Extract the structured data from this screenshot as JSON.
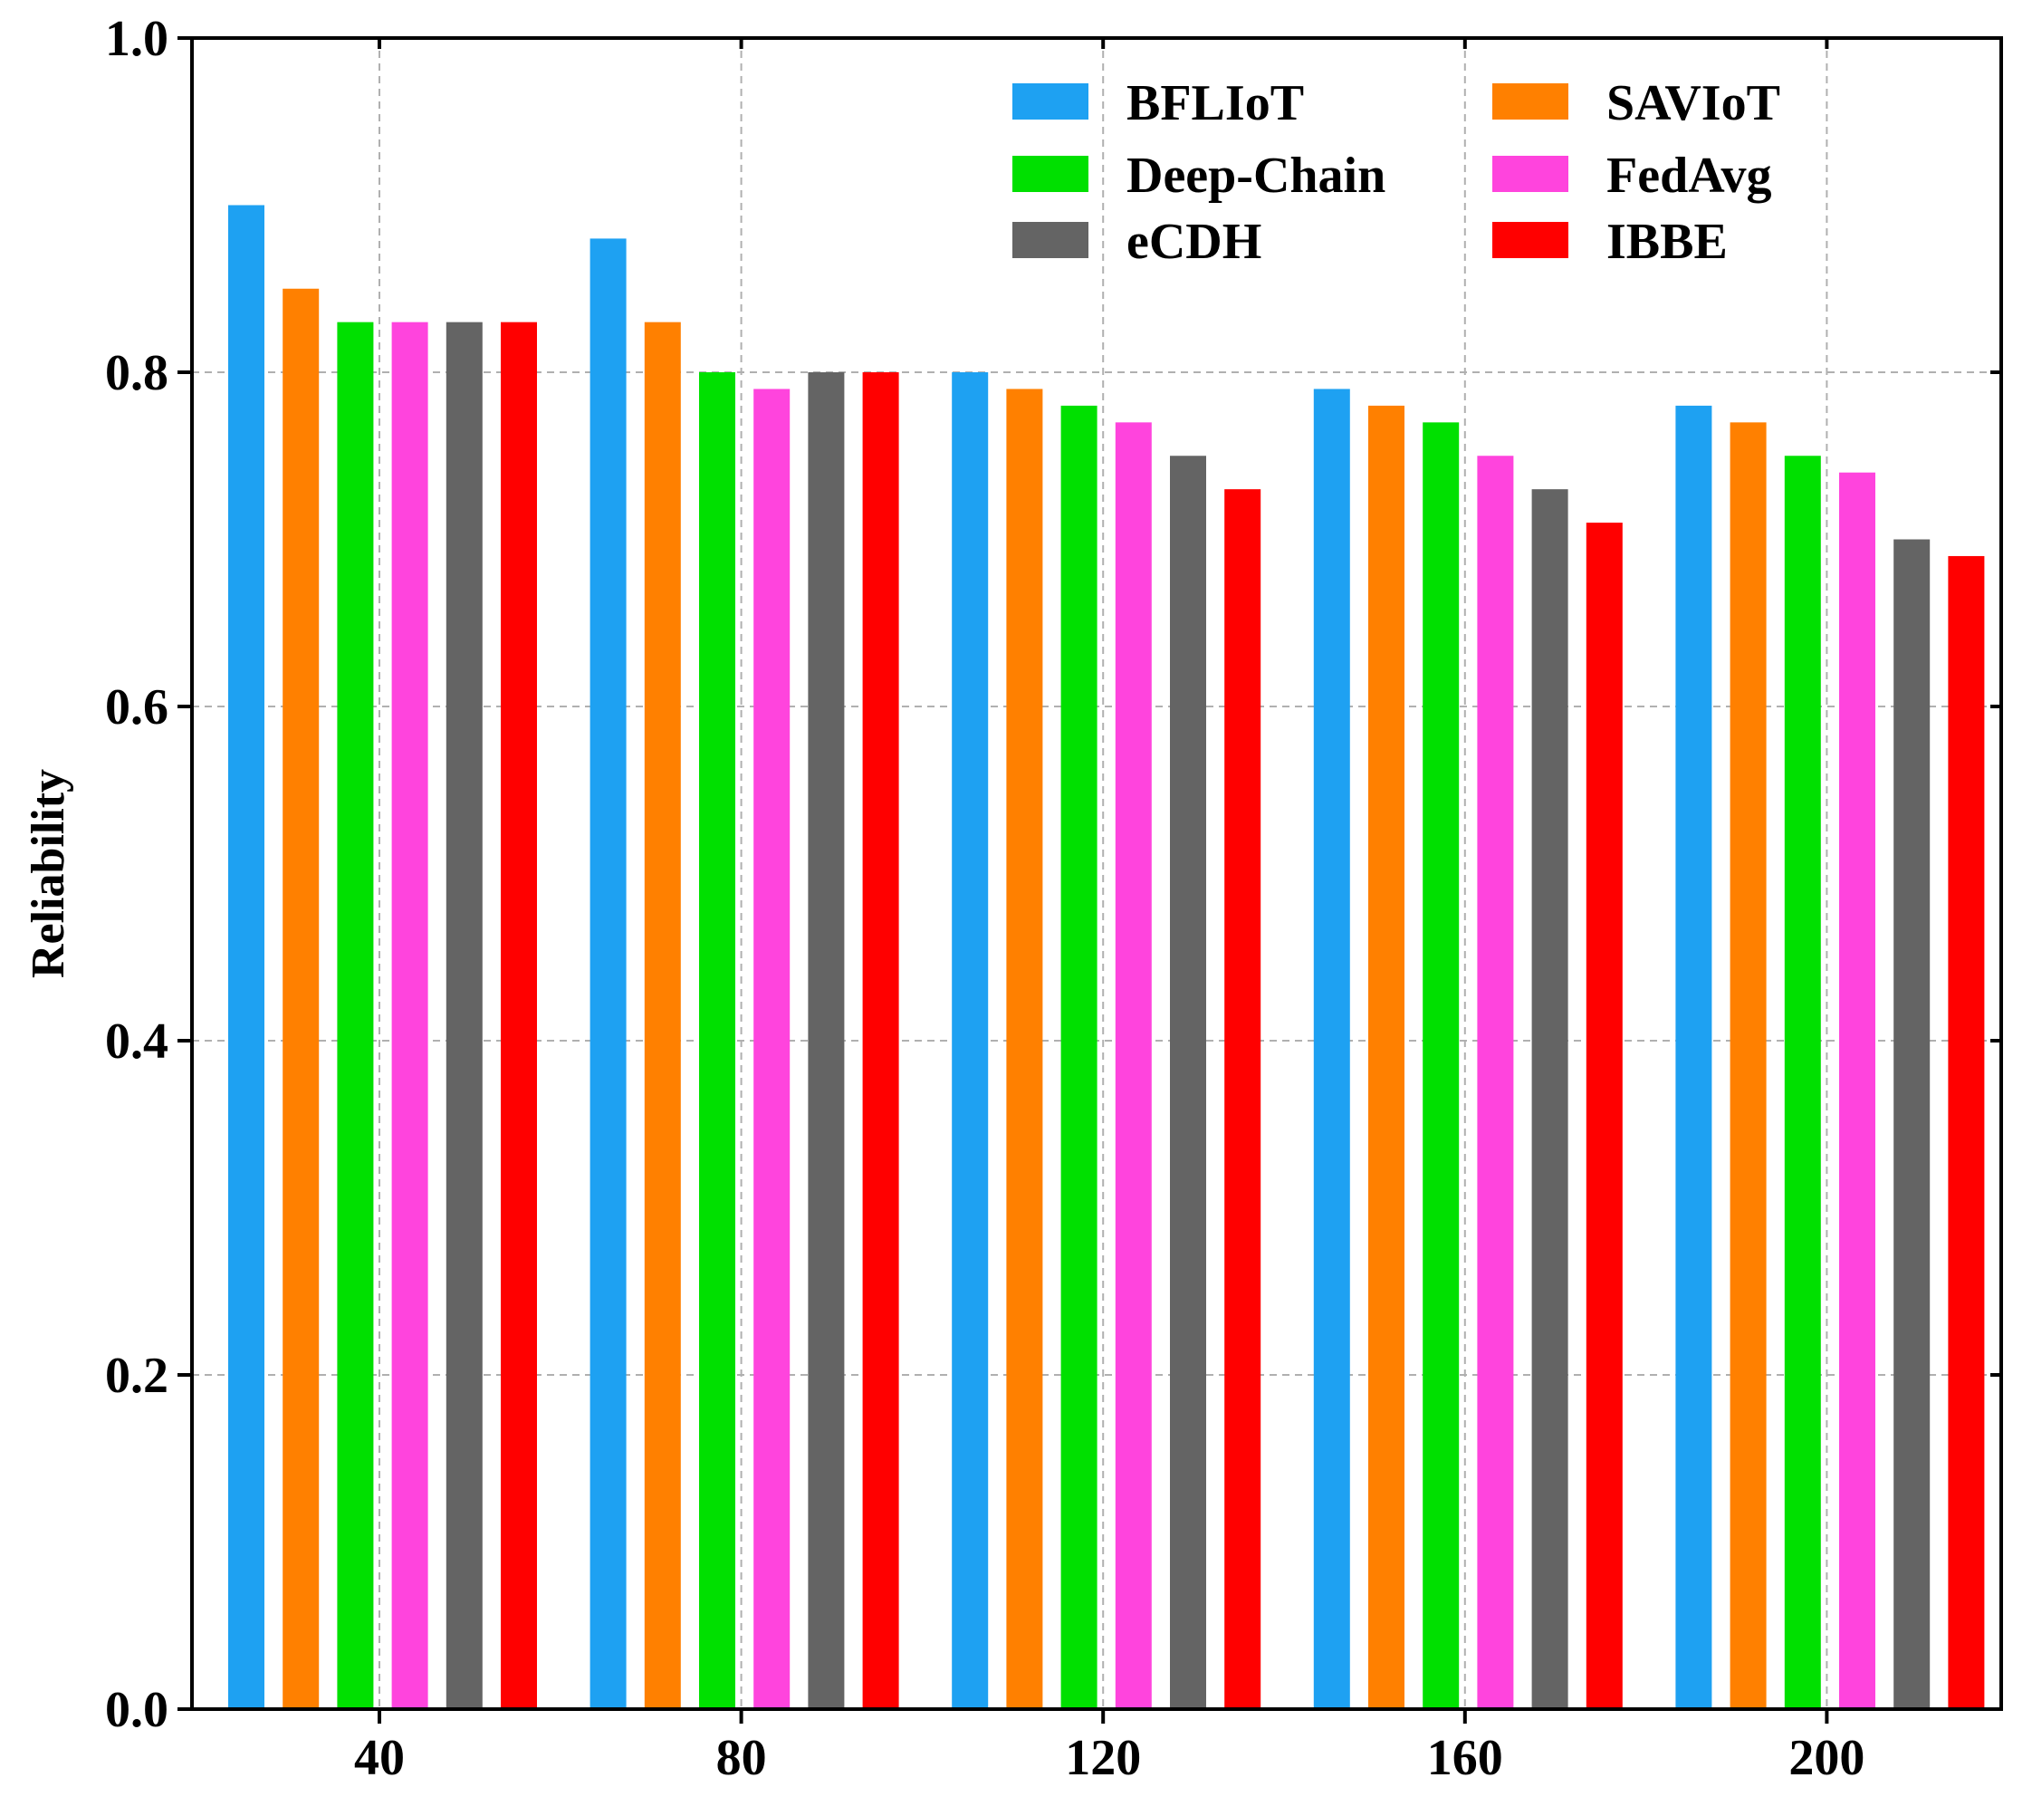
{
  "chart_data": {
    "type": "bar",
    "title": "",
    "xlabel": "",
    "ylabel": "Reliability",
    "categories": [
      "40",
      "80",
      "120",
      "160",
      "200"
    ],
    "ylim": [
      0,
      1.0
    ],
    "yticks": [
      "0.0",
      "0.2",
      "0.4",
      "0.6",
      "0.8",
      "1.0"
    ],
    "grid": true,
    "legend_position": "top-right",
    "series": [
      {
        "name": "BFLIoT",
        "color": "#1ea1f2",
        "values": [
          0.9,
          0.88,
          0.8,
          0.79,
          0.78
        ]
      },
      {
        "name": "SAVIoT",
        "color": "#ff8000",
        "values": [
          0.85,
          0.83,
          0.79,
          0.78,
          0.77
        ]
      },
      {
        "name": "Deep-Chain",
        "color": "#00e000",
        "values": [
          0.83,
          0.8,
          0.78,
          0.77,
          0.75
        ]
      },
      {
        "name": "FedAvg",
        "color": "#ff44dd",
        "values": [
          0.83,
          0.79,
          0.77,
          0.75,
          0.74
        ]
      },
      {
        "name": "eCDH",
        "color": "#646464",
        "values": [
          0.83,
          0.8,
          0.75,
          0.73,
          0.7
        ]
      },
      {
        "name": "IBBE",
        "color": "#ff0000",
        "values": [
          0.83,
          0.8,
          0.73,
          0.71,
          0.69
        ]
      }
    ]
  }
}
